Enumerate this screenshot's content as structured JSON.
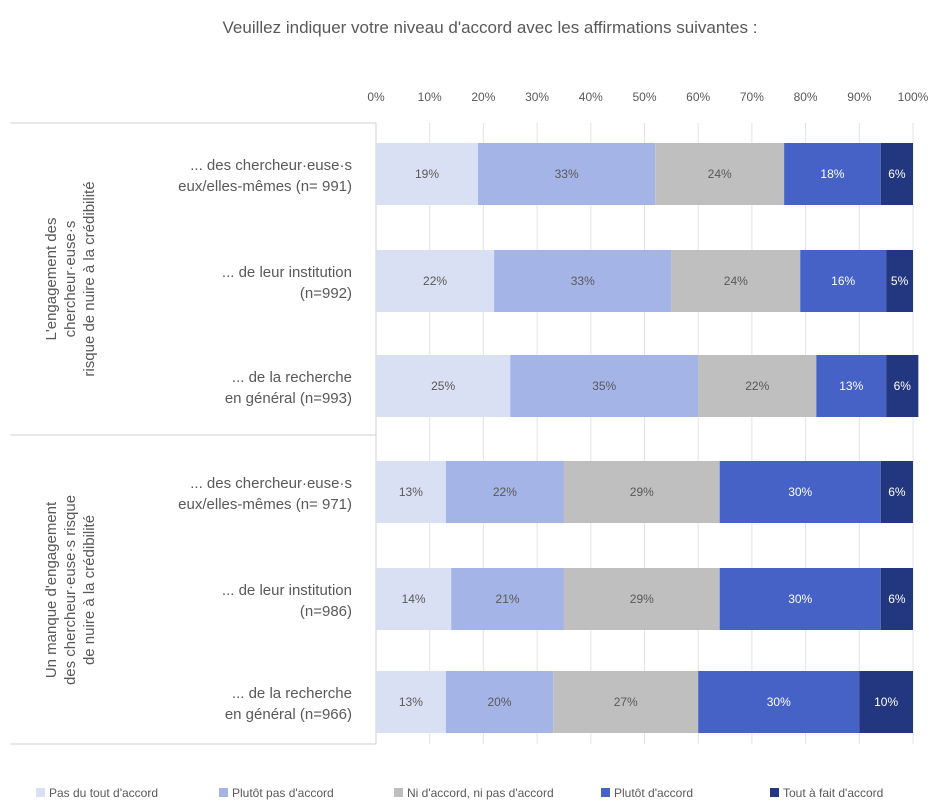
{
  "chart_data": {
    "type": "bar",
    "orientation": "horizontal",
    "stacked": true,
    "title": "Veuillez indiquer votre niveau d'accord avec les affirmations suivantes :",
    "x_ticks": [
      "0%",
      "10%",
      "20%",
      "30%",
      "40%",
      "50%",
      "60%",
      "70%",
      "80%",
      "90%",
      "100%"
    ],
    "xlim": [
      0,
      100
    ],
    "grid": true,
    "legend_position": "bottom",
    "groups": [
      {
        "label_lines": [
          "L'engagement des",
          "chercheur·euse·s",
          "risque de nuire à la crédibilité"
        ],
        "rows": [
          0,
          1,
          2
        ]
      },
      {
        "label_lines": [
          "Un manque d'engagement",
          "des chercheur·euse·s risque",
          "de nuire à la crédibilité"
        ],
        "rows": [
          3,
          4,
          5
        ]
      }
    ],
    "categories": [
      [
        "... des chercheur·euse·s",
        "eux/elles-mêmes (n= 991)"
      ],
      [
        "... de leur institution",
        "(n=992)"
      ],
      [
        "... de la recherche",
        "en général (n=993)"
      ],
      [
        "... des chercheur·euse·s",
        "eux/elles-mêmes (n= 971)"
      ],
      [
        "... de leur institution",
        "(n=986)"
      ],
      [
        "... de la recherche",
        "en général (n=966)"
      ]
    ],
    "series": [
      {
        "name": "Pas du tout d'accord",
        "color": "#d9e0f4",
        "label_color": "#595959",
        "values": [
          19,
          22,
          25,
          13,
          14,
          13
        ]
      },
      {
        "name": "Plutôt pas d'accord",
        "color": "#a5b4e6",
        "label_color": "#595959",
        "values": [
          33,
          33,
          35,
          22,
          21,
          20
        ]
      },
      {
        "name": "Ni d'accord, ni pas d'accord",
        "color": "#bfbfbf",
        "label_color": "#595959",
        "values": [
          24,
          24,
          22,
          29,
          29,
          27
        ]
      },
      {
        "name": "Plutôt d'accord",
        "color": "#4662c6",
        "label_color": "#ffffff",
        "values": [
          18,
          16,
          13,
          30,
          30,
          30
        ]
      },
      {
        "name": "Tout à fait d'accord",
        "color": "#223780",
        "label_color": "#ffffff",
        "values": [
          6,
          5,
          6,
          6,
          6,
          10
        ]
      }
    ]
  }
}
